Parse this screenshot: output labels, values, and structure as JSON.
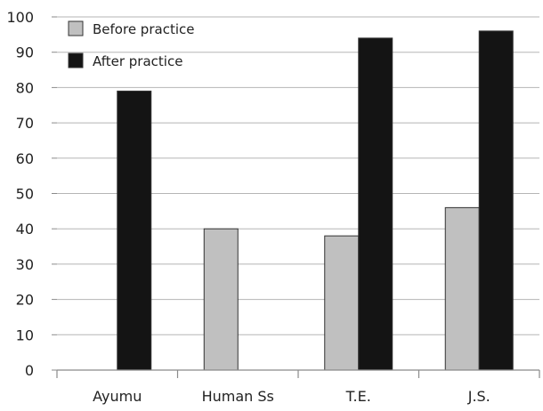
{
  "chart_data": {
    "type": "bar",
    "categories": [
      "Ayumu",
      "Human Ss",
      "T.E.",
      "J.S."
    ],
    "series": [
      {
        "name": "Before practice",
        "values": [
          null,
          40,
          38,
          46
        ],
        "color": "#c0c0c0"
      },
      {
        "name": "After practice",
        "values": [
          79,
          null,
          94,
          96
        ],
        "color": "#141414"
      }
    ],
    "ylim": [
      0,
      100
    ],
    "yticks": [
      0,
      10,
      20,
      30,
      40,
      50,
      60,
      70,
      80,
      90,
      100
    ],
    "grid": true,
    "legend_position": "top-left",
    "title": "",
    "xlabel": "",
    "ylabel": ""
  }
}
